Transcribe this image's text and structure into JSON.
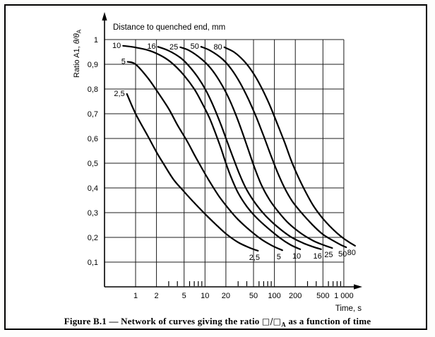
{
  "figure": {
    "caption": {
      "prefix": "Figure B.1 — Network of curves giving the ratio ",
      "ratio_symbol": "□/□",
      "ratio_subscript": "A",
      "suffix": " as a function of time"
    }
  },
  "chart_data": {
    "type": "line",
    "title": "Distance to quenched end, mm",
    "x_axis": {
      "label": "Time, s",
      "scale": "log",
      "range": [
        1,
        1000
      ],
      "ticks": [
        {
          "value": 1,
          "label": "1"
        },
        {
          "value": 2,
          "label": "2"
        },
        {
          "value": 5,
          "label": "5"
        },
        {
          "value": 10,
          "label": "10"
        },
        {
          "value": 20,
          "label": "20"
        },
        {
          "value": 50,
          "label": "50"
        },
        {
          "value": 100,
          "label": "100"
        },
        {
          "value": 200,
          "label": "200"
        },
        {
          "value": 500,
          "label": "500"
        },
        {
          "value": 1000,
          "label": "1 000"
        }
      ],
      "minor_ticks": [
        3,
        4,
        6,
        7,
        8,
        9,
        30,
        40,
        60,
        70,
        80,
        90,
        300,
        400,
        600,
        700,
        800,
        900
      ]
    },
    "y_axis": {
      "label_prefix": "Ratio A1, ",
      "label_symbol": "θ/θ",
      "label_subscript": "A",
      "range": [
        0,
        1
      ],
      "ticks": [
        {
          "value": 1.0,
          "label": "1"
        },
        {
          "value": 0.9,
          "label": "0,9"
        },
        {
          "value": 0.8,
          "label": "0,8"
        },
        {
          "value": 0.7,
          "label": "0,7"
        },
        {
          "value": 0.6,
          "label": "0,6"
        },
        {
          "value": 0.5,
          "label": "0,5"
        },
        {
          "value": 0.4,
          "label": "0,4"
        },
        {
          "value": 0.3,
          "label": "0,3"
        },
        {
          "value": 0.2,
          "label": "0,2"
        },
        {
          "value": 0.1,
          "label": "0,1"
        }
      ]
    },
    "grid": true,
    "series": [
      {
        "name": "2,5",
        "distance_mm": 2.5,
        "points": [
          [
            0.75,
            0.78
          ],
          [
            1,
            0.7
          ],
          [
            1.5,
            0.61
          ],
          [
            2,
            0.545
          ],
          [
            2.5,
            0.5
          ],
          [
            3.5,
            0.435
          ],
          [
            5,
            0.385
          ],
          [
            7,
            0.34
          ],
          [
            10,
            0.295
          ],
          [
            14,
            0.255
          ],
          [
            20,
            0.215
          ],
          [
            30,
            0.18
          ],
          [
            45,
            0.157
          ],
          [
            58,
            0.146
          ]
        ]
      },
      {
        "name": "5",
        "distance_mm": 5,
        "points": [
          [
            0.77,
            0.91
          ],
          [
            1,
            0.9
          ],
          [
            1.5,
            0.845
          ],
          [
            2,
            0.795
          ],
          [
            3,
            0.72
          ],
          [
            4,
            0.655
          ],
          [
            5.5,
            0.59
          ],
          [
            7,
            0.535
          ],
          [
            9,
            0.48
          ],
          [
            12,
            0.42
          ],
          [
            16,
            0.365
          ],
          [
            22,
            0.315
          ],
          [
            30,
            0.272
          ],
          [
            45,
            0.227
          ],
          [
            65,
            0.192
          ],
          [
            95,
            0.165
          ],
          [
            130,
            0.148
          ]
        ]
      },
      {
        "name": "10",
        "distance_mm": 10,
        "points": [
          [
            0.66,
            0.975
          ],
          [
            1,
            0.968
          ],
          [
            1.6,
            0.955
          ],
          [
            2.5,
            0.93
          ],
          [
            3.5,
            0.9
          ],
          [
            5,
            0.855
          ],
          [
            7,
            0.8
          ],
          [
            9,
            0.745
          ],
          [
            11.5,
            0.685
          ],
          [
            14,
            0.625
          ],
          [
            17,
            0.56
          ],
          [
            20,
            0.5
          ],
          [
            24,
            0.44
          ],
          [
            30,
            0.38
          ],
          [
            40,
            0.325
          ],
          [
            55,
            0.28
          ],
          [
            80,
            0.238
          ],
          [
            120,
            0.198
          ],
          [
            170,
            0.17
          ],
          [
            235,
            0.152
          ]
        ]
      },
      {
        "name": "16",
        "distance_mm": 16,
        "points": [
          [
            2.1,
            0.971
          ],
          [
            3,
            0.955
          ],
          [
            4.5,
            0.925
          ],
          [
            6,
            0.89
          ],
          [
            8,
            0.845
          ],
          [
            10.5,
            0.79
          ],
          [
            13.5,
            0.725
          ],
          [
            17,
            0.655
          ],
          [
            21,
            0.585
          ],
          [
            26,
            0.515
          ],
          [
            32,
            0.45
          ],
          [
            40,
            0.392
          ],
          [
            55,
            0.332
          ],
          [
            75,
            0.287
          ],
          [
            110,
            0.243
          ],
          [
            170,
            0.203
          ],
          [
            260,
            0.177
          ],
          [
            360,
            0.162
          ],
          [
            470,
            0.152
          ]
        ]
      },
      {
        "name": "25",
        "distance_mm": 25,
        "points": [
          [
            4.4,
            0.969
          ],
          [
            6,
            0.955
          ],
          [
            9,
            0.92
          ],
          [
            12,
            0.885
          ],
          [
            16,
            0.835
          ],
          [
            21,
            0.775
          ],
          [
            27,
            0.705
          ],
          [
            34,
            0.63
          ],
          [
            42,
            0.555
          ],
          [
            52,
            0.48
          ],
          [
            65,
            0.412
          ],
          [
            85,
            0.352
          ],
          [
            115,
            0.302
          ],
          [
            160,
            0.257
          ],
          [
            240,
            0.217
          ],
          [
            360,
            0.187
          ],
          [
            500,
            0.17
          ],
          [
            680,
            0.157
          ]
        ]
      },
      {
        "name": "50",
        "distance_mm": 50,
        "points": [
          [
            8.8,
            0.971
          ],
          [
            12,
            0.955
          ],
          [
            18,
            0.92
          ],
          [
            24,
            0.88
          ],
          [
            32,
            0.825
          ],
          [
            42,
            0.76
          ],
          [
            55,
            0.685
          ],
          [
            70,
            0.61
          ],
          [
            88,
            0.535
          ],
          [
            110,
            0.465
          ],
          [
            140,
            0.4
          ],
          [
            180,
            0.347
          ],
          [
            250,
            0.297
          ],
          [
            350,
            0.252
          ],
          [
            500,
            0.212
          ],
          [
            700,
            0.187
          ],
          [
            900,
            0.17
          ],
          [
            1080,
            0.16
          ]
        ]
      },
      {
        "name": "80",
        "distance_mm": 80,
        "points": [
          [
            19,
            0.969
          ],
          [
            26,
            0.95
          ],
          [
            36,
            0.915
          ],
          [
            48,
            0.87
          ],
          [
            64,
            0.81
          ],
          [
            84,
            0.74
          ],
          [
            108,
            0.665
          ],
          [
            140,
            0.585
          ],
          [
            175,
            0.51
          ],
          [
            220,
            0.445
          ],
          [
            280,
            0.385
          ],
          [
            360,
            0.33
          ],
          [
            470,
            0.285
          ],
          [
            620,
            0.247
          ],
          [
            800,
            0.217
          ],
          [
            1000,
            0.195
          ],
          [
            1250,
            0.177
          ],
          [
            1450,
            0.166
          ]
        ]
      }
    ],
    "colors": {
      "curve": "#000000",
      "grid": "#1c1c1c",
      "axis": "#000000",
      "background": "#ffffff"
    }
  }
}
